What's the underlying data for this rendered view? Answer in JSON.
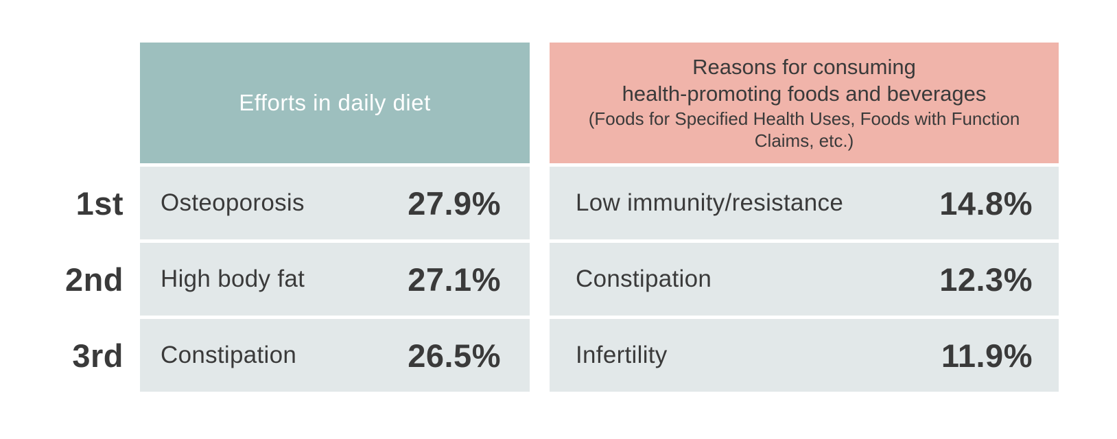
{
  "colors": {
    "background": "#FFFFFF",
    "header_teal": "#9DBFBE",
    "header_salmon": "#F0B4AA",
    "row_background": "#E2E8E9",
    "text_dark": "#3A3A3A",
    "header_left_text": "#FFFFFF"
  },
  "chart_data": {
    "type": "table",
    "rank_labels": [
      "1st",
      "2nd",
      "3rd"
    ],
    "columns": [
      {
        "header_title": "Efforts in daily diet",
        "header_bg": "#9DBFBE",
        "rows": [
          {
            "label": "Osteoporosis",
            "value": "27.9%",
            "value_pct": 27.9
          },
          {
            "label": "High body fat",
            "value": "27.1%",
            "value_pct": 27.1
          },
          {
            "label": "Constipation",
            "value": "26.5%",
            "value_pct": 26.5
          }
        ]
      },
      {
        "header_title_line1": "Reasons for consuming",
        "header_title_line2": "health-promoting foods and beverages",
        "header_subtitle": "(Foods for Specified Health Uses, Foods with Function Claims, etc.)",
        "header_bg": "#F0B4AA",
        "rows": [
          {
            "label": "Low immunity/resistance",
            "value": "14.8%",
            "value_pct": 14.8
          },
          {
            "label": "Constipation",
            "value": "12.3%",
            "value_pct": 12.3
          },
          {
            "label": "Infertility",
            "value": "11.9%",
            "value_pct": 11.9
          }
        ]
      }
    ]
  }
}
